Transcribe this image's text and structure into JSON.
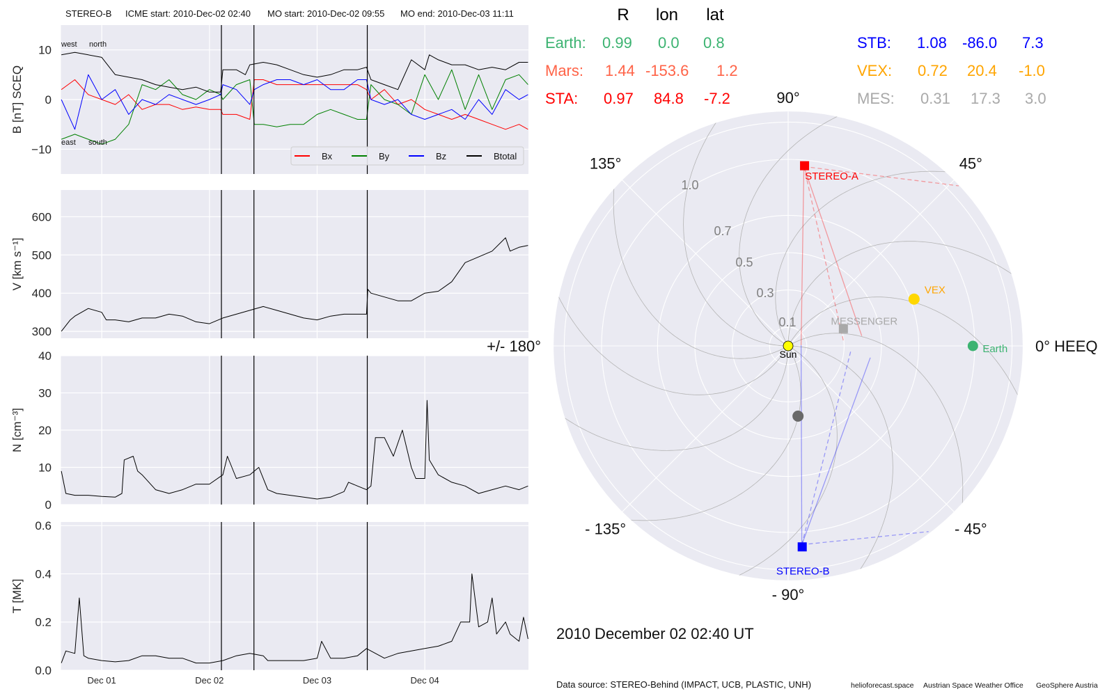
{
  "title": {
    "spacecraft": "STEREO-B",
    "icme_start": "ICME start: 2010-Dec-02 02:40",
    "mo_start": "MO start: 2010-Dec-02 09:55",
    "mo_end": "MO end: 2010-Dec-03 11:11"
  },
  "time_axis": {
    "unit": "hours since 2010-Dec-01 00:00",
    "xlim": [
      -9.1,
      95.1
    ],
    "ticks": [
      0,
      24,
      48,
      72
    ],
    "tick_labels": [
      "Dec 01",
      "Dec 02",
      "Dec 03",
      "Dec 04"
    ]
  },
  "events": [
    {
      "name": "icme-start",
      "hour": 26.67
    },
    {
      "name": "mo-start",
      "hour": 33.92
    },
    {
      "name": "mo-end",
      "hour": 59.18
    }
  ],
  "chart_data": [
    {
      "id": "B",
      "type": "line",
      "ylabel": "B [nT] SCEQ",
      "ylim": [
        -15,
        15
      ],
      "yticks": [
        -10,
        0,
        10
      ],
      "ytick_labels": [
        "−10",
        "0",
        "10"
      ],
      "annotations": [
        "west",
        "north",
        "east",
        "south"
      ],
      "legend": {
        "position": "lower-right",
        "entries": [
          "Bx",
          "By",
          "Bz",
          "Btotal"
        ]
      },
      "series": [
        {
          "name": "Bx",
          "color": "#ff0000",
          "x": [
            -9,
            -6,
            -3,
            0,
            3,
            6,
            9,
            12,
            15,
            18,
            21,
            24,
            26.5,
            27,
            30,
            33,
            34,
            36,
            39,
            42,
            45,
            48,
            51,
            54,
            57,
            59,
            60,
            63,
            66,
            69,
            72,
            75,
            78,
            81,
            84,
            87,
            90,
            93,
            95
          ],
          "y": [
            2,
            4,
            1,
            0,
            -1,
            1,
            -2,
            -1,
            -1,
            -2,
            -1.5,
            -2,
            -2,
            -3,
            -3,
            -4,
            4,
            4,
            3,
            3,
            3,
            3,
            3,
            3,
            3,
            2,
            0,
            2,
            -1,
            0,
            -2,
            -3,
            -4,
            -3,
            -4,
            -5,
            -6,
            -5,
            -6
          ]
        },
        {
          "name": "By",
          "color": "#008000",
          "x": [
            -9,
            -6,
            -3,
            0,
            3,
            6,
            9,
            12,
            15,
            18,
            21,
            24,
            26.5,
            27,
            30,
            33,
            34,
            36,
            39,
            42,
            45,
            48,
            51,
            54,
            57,
            59,
            60,
            63,
            66,
            69,
            72,
            75,
            78,
            81,
            84,
            87,
            90,
            93,
            95
          ],
          "y": [
            -8,
            -7,
            -8,
            -9,
            -8,
            -5,
            3,
            2,
            4,
            1,
            0,
            2,
            1,
            0,
            3,
            4,
            -5,
            -5,
            -5.5,
            -5,
            -5,
            -3,
            -2,
            -3,
            -4,
            -4,
            3,
            0,
            -1,
            -3,
            5,
            0,
            6,
            -2,
            5,
            -2,
            4,
            5,
            3
          ]
        },
        {
          "name": "Bz",
          "color": "#0000ff",
          "x": [
            -9,
            -6,
            -3,
            0,
            3,
            6,
            9,
            12,
            15,
            18,
            21,
            24,
            26.5,
            27,
            30,
            33,
            34,
            36,
            39,
            42,
            45,
            48,
            51,
            54,
            57,
            59,
            60,
            63,
            66,
            69,
            72,
            75,
            78,
            81,
            84,
            87,
            90,
            93,
            95
          ],
          "y": [
            0,
            -6,
            5,
            0,
            2,
            -3,
            0,
            -1,
            1,
            0,
            -1,
            0,
            1,
            3,
            2,
            -1,
            2,
            3,
            4,
            4,
            3,
            4,
            2,
            2,
            4,
            4,
            0,
            -1,
            0,
            -3,
            -4,
            -3,
            -2,
            -4,
            0,
            -3,
            2,
            0,
            1
          ]
        },
        {
          "name": "Btotal",
          "color": "#000000",
          "x": [
            -9,
            -6,
            -3,
            0,
            3,
            6,
            9,
            12,
            15,
            18,
            21,
            24,
            26.5,
            27,
            30,
            32,
            33,
            36,
            39,
            42,
            45,
            48,
            51,
            54,
            57,
            59,
            60,
            63,
            66,
            67,
            69,
            72,
            73,
            75,
            78,
            81,
            84,
            87,
            90,
            93,
            95
          ],
          "y": [
            9,
            9.5,
            9,
            8.5,
            5,
            4.5,
            4,
            3,
            2.5,
            2,
            2.5,
            1.5,
            1.5,
            6,
            6,
            5,
            7,
            7.5,
            7,
            6,
            5,
            4.5,
            5,
            6,
            6,
            6.5,
            4,
            3,
            2,
            4,
            8,
            6,
            9,
            8,
            7,
            7,
            6,
            6.5,
            6,
            7.5,
            7.5
          ]
        }
      ]
    },
    {
      "id": "V",
      "type": "line",
      "ylabel": "V [km s⁻¹]",
      "ylim": [
        282,
        670
      ],
      "yticks": [
        300,
        400,
        500,
        600
      ],
      "ytick_labels": [
        "300",
        "400",
        "500",
        "600"
      ],
      "series": [
        {
          "name": "V",
          "color": "#000000",
          "x": [
            -9,
            -7,
            -6,
            -3,
            0,
            1,
            3,
            6,
            9,
            12,
            15,
            18,
            21,
            24,
            27,
            30,
            33,
            36,
            39,
            42,
            45,
            48,
            51,
            54,
            57,
            59,
            59.3,
            60,
            63,
            66,
            69,
            72,
            75,
            78,
            81,
            84,
            87,
            90,
            91,
            93,
            95
          ],
          "y": [
            300,
            330,
            340,
            360,
            350,
            330,
            330,
            325,
            335,
            335,
            345,
            340,
            325,
            320,
            335,
            345,
            355,
            365,
            355,
            345,
            335,
            330,
            340,
            345,
            345,
            345,
            410,
            400,
            390,
            380,
            380,
            400,
            405,
            430,
            480,
            495,
            510,
            545,
            510,
            520,
            525
          ]
        }
      ]
    },
    {
      "id": "N",
      "type": "line",
      "ylabel": "N [cm⁻³]",
      "ylim": [
        0,
        40
      ],
      "yticks": [
        0,
        10,
        20,
        30,
        40
      ],
      "ytick_labels": [
        "0",
        "10",
        "20",
        "30",
        "40"
      ],
      "series": [
        {
          "name": "N",
          "color": "#000000",
          "x": [
            -9,
            -8,
            -6,
            -3,
            0,
            3,
            4.5,
            5,
            7,
            8,
            9,
            12,
            15,
            18,
            21,
            24,
            27,
            28,
            30,
            33,
            35,
            37,
            39,
            42,
            45,
            48,
            51,
            54,
            55,
            57,
            59,
            60,
            61,
            63,
            65,
            67,
            69,
            70,
            72,
            72.5,
            73,
            75,
            78,
            81,
            84,
            87,
            90,
            93,
            95
          ],
          "y": [
            9,
            3,
            2.5,
            2.5,
            2.2,
            2,
            3,
            12,
            13,
            9,
            8,
            4,
            3,
            4,
            5.5,
            5.5,
            8,
            13,
            7,
            8,
            10,
            4,
            3,
            2.5,
            2,
            1.5,
            2,
            3.5,
            6,
            5,
            4,
            5,
            18,
            18,
            13,
            20,
            10,
            7,
            7,
            28,
            12,
            8,
            6,
            5,
            3,
            4,
            5,
            4,
            5
          ]
        }
      ]
    },
    {
      "id": "T",
      "type": "line",
      "ylabel": "T [MK]",
      "ylim": [
        0,
        0.615
      ],
      "yticks": [
        0,
        0.2,
        0.4,
        0.6
      ],
      "ytick_labels": [
        "0.0",
        "0.2",
        "0.4",
        "0.6"
      ],
      "series": [
        {
          "name": "T",
          "color": "#000000",
          "x": [
            -9,
            -8,
            -6,
            -5,
            -4,
            -3,
            0,
            3,
            6,
            9,
            12,
            15,
            18,
            21,
            24,
            27,
            30,
            33,
            36,
            37,
            42,
            45,
            48,
            49,
            51,
            54,
            57,
            59,
            60,
            63,
            66,
            69,
            72,
            75,
            78,
            80,
            82,
            82.5,
            84,
            86,
            87,
            88,
            90,
            91,
            93,
            94,
            95
          ],
          "y": [
            0.03,
            0.08,
            0.07,
            0.3,
            0.06,
            0.05,
            0.04,
            0.035,
            0.04,
            0.06,
            0.06,
            0.05,
            0.05,
            0.03,
            0.03,
            0.04,
            0.06,
            0.07,
            0.06,
            0.04,
            0.04,
            0.04,
            0.05,
            0.12,
            0.05,
            0.05,
            0.06,
            0.09,
            0.08,
            0.05,
            0.07,
            0.08,
            0.09,
            0.1,
            0.12,
            0.2,
            0.2,
            0.4,
            0.18,
            0.2,
            0.3,
            0.15,
            0.2,
            0.15,
            0.12,
            0.22,
            0.13
          ]
        }
      ]
    },
    {
      "id": "orbit",
      "type": "polar",
      "rmax": 1.257,
      "radial_ticks": [
        0.1,
        0.3,
        0.5,
        0.7,
        1.0,
        1.2
      ],
      "radial_tick_labels": [
        "0.1",
        "0.3",
        "0.5",
        "0.7",
        "1.0"
      ],
      "angle_labels": [
        {
          "lon": 0,
          "label": "0° HEEQ"
        },
        {
          "lon": 45,
          "label": "45°"
        },
        {
          "lon": 90,
          "label": "90°"
        },
        {
          "lon": 135,
          "label": "135°"
        },
        {
          "lon": 180,
          "label": "+/- 180°"
        },
        {
          "lon": -135,
          "label": "- 135°"
        },
        {
          "lon": -90,
          "label": "- 90°"
        },
        {
          "lon": -45,
          "label": "- 45°"
        }
      ],
      "bodies": [
        {
          "name": "sun",
          "label": "Sun",
          "r": 0,
          "lon": 0,
          "color": "#ffff00",
          "label_color": "#000000",
          "marker": "circle"
        },
        {
          "name": "stereo-a",
          "label": "STEREO-A",
          "r": 0.97,
          "lon": 84.8,
          "color": "#ff0000",
          "label_color": "#ff0000",
          "marker": "square"
        },
        {
          "name": "stereo-b",
          "label": "STEREO-B",
          "r": 1.08,
          "lon": -86.0,
          "color": "#0000ff",
          "label_color": "#0000ff",
          "marker": "square"
        },
        {
          "name": "vex",
          "label": "VEX",
          "r": 0.72,
          "lon": 20.4,
          "color": "#ffd700",
          "label_color": "#ffa500",
          "marker": "circle"
        },
        {
          "name": "messenger",
          "label": "MESSENGER",
          "r": 0.31,
          "lon": 17.3,
          "color": "#a9a9a9",
          "label_color": "#a9a9a9",
          "marker": "square"
        },
        {
          "name": "earth",
          "label": "Earth",
          "r": 0.99,
          "lon": 0.0,
          "color": "#3cb371",
          "label_color": "#3cb371",
          "marker": "circle"
        },
        {
          "name": "unlabeled-body",
          "label": "",
          "r": 0.38,
          "lon": -82,
          "color": "#696969",
          "label_color": "#696969",
          "marker": "circle"
        }
      ]
    }
  ],
  "positions_table": {
    "headers": [
      "R",
      "lon",
      "lat"
    ],
    "left_rows": [
      {
        "label": "Earth:",
        "R": "0.99",
        "lon": "0.0",
        "lat": "0.8",
        "color": "#3cb371"
      },
      {
        "label": "Mars:",
        "R": "1.44",
        "lon": "-153.6",
        "lat": "1.2",
        "color": "#ff6347"
      },
      {
        "label": "STA:",
        "R": "0.97",
        "lon": "84.8",
        "lat": "-7.2",
        "color": "#ff0000"
      }
    ],
    "right_rows": [
      {
        "label": "STB:",
        "R": "1.08",
        "lon": "-86.0",
        "lat": "7.3",
        "color": "#0000ff"
      },
      {
        "label": "VEX:",
        "R": "0.72",
        "lon": "20.4",
        "lat": "-1.0",
        "color": "#ffa500"
      },
      {
        "label": "MES:",
        "R": "0.31",
        "lon": "17.3",
        "lat": "3.0",
        "color": "#a9a9a9"
      }
    ]
  },
  "timestamp": "2010 December 02  02:40 UT",
  "footer": {
    "source": "Data source: STEREO-Behind (IMPACT, UCB, PLASTIC, UNH)",
    "credit1": "helioforecast.space",
    "credit2": "Austrian Space Weather Office",
    "credit3": "GeoSphere Austria"
  }
}
